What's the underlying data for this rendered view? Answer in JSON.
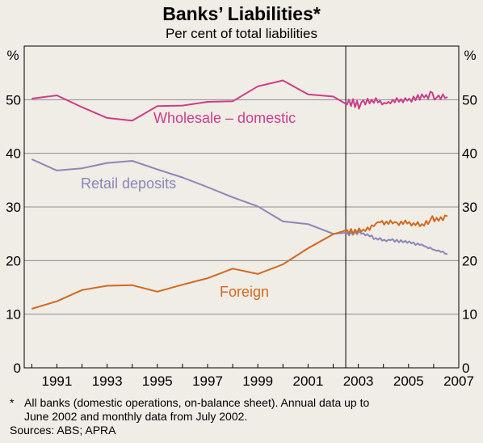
{
  "chart_data": {
    "type": "line",
    "title": "Banks’ Liabilities*",
    "subtitle": "Per cent of total liabilities",
    "ylabel_left": "%",
    "ylabel_right": "%",
    "ylim": [
      0,
      60
    ],
    "yticks": [
      0,
      10,
      20,
      30,
      40,
      50
    ],
    "xlim": [
      1989.7,
      2007.0
    ],
    "xticks": [
      1991,
      1993,
      1995,
      1997,
      1999,
      2001,
      2003,
      2005,
      2007
    ],
    "vline_x": 2002.5,
    "grid": "horizontal",
    "series": [
      {
        "name": "Wholesale – domestic",
        "color": "#cc3d8a",
        "points": [
          [
            1990,
            50.2
          ],
          [
            1991,
            50.8
          ],
          [
            1992,
            48.6
          ],
          [
            1993,
            46.6
          ],
          [
            1994,
            46.1
          ],
          [
            1995,
            48.8
          ],
          [
            1996,
            48.9
          ],
          [
            1997,
            49.6
          ],
          [
            1998,
            49.7
          ],
          [
            1999,
            52.5
          ],
          [
            2000,
            53.6
          ],
          [
            2001,
            51.0
          ],
          [
            2002,
            50.6
          ],
          [
            2002.55,
            49.1
          ],
          [
            2002.63,
            50.0
          ],
          [
            2002.71,
            48.8
          ],
          [
            2002.79,
            50.1
          ],
          [
            2002.87,
            48.6
          ],
          [
            2002.95,
            49.8
          ],
          [
            2003.03,
            48.3
          ],
          [
            2003.12,
            49.5
          ],
          [
            2003.2,
            49.9
          ],
          [
            2003.28,
            49.1
          ],
          [
            2003.37,
            50.2
          ],
          [
            2003.45,
            49.3
          ],
          [
            2003.53,
            50.0
          ],
          [
            2003.62,
            49.4
          ],
          [
            2003.7,
            50.3
          ],
          [
            2003.78,
            49.5
          ],
          [
            2003.87,
            49.8
          ],
          [
            2003.95,
            49.1
          ],
          [
            2004.03,
            49.4
          ],
          [
            2004.12,
            49.3
          ],
          [
            2004.2,
            49.6
          ],
          [
            2004.28,
            49.3
          ],
          [
            2004.37,
            50.0
          ],
          [
            2004.45,
            49.5
          ],
          [
            2004.53,
            50.3
          ],
          [
            2004.62,
            49.6
          ],
          [
            2004.7,
            50.1
          ],
          [
            2004.78,
            49.5
          ],
          [
            2004.87,
            50.3
          ],
          [
            2004.95,
            49.8
          ],
          [
            2005.03,
            50.2
          ],
          [
            2005.12,
            49.6
          ],
          [
            2005.2,
            50.6
          ],
          [
            2005.28,
            49.9
          ],
          [
            2005.37,
            50.9
          ],
          [
            2005.45,
            50.0
          ],
          [
            2005.53,
            51.0
          ],
          [
            2005.62,
            50.4
          ],
          [
            2005.7,
            50.9
          ],
          [
            2005.78,
            50.2
          ],
          [
            2005.87,
            51.5
          ],
          [
            2005.95,
            51.3
          ],
          [
            2006.03,
            50.0
          ],
          [
            2006.12,
            50.4
          ],
          [
            2006.2,
            50.8
          ],
          [
            2006.28,
            50.1
          ],
          [
            2006.37,
            51.0
          ],
          [
            2006.45,
            50.3
          ],
          [
            2006.55,
            50.5
          ]
        ]
      },
      {
        "name": "Retail deposits",
        "color": "#8b86b8",
        "points": [
          [
            1990,
            38.9
          ],
          [
            1991,
            36.8
          ],
          [
            1992,
            37.2
          ],
          [
            1993,
            38.2
          ],
          [
            1994,
            38.6
          ],
          [
            1995,
            37.0
          ],
          [
            1996,
            35.5
          ],
          [
            1997,
            33.7
          ],
          [
            1998,
            31.8
          ],
          [
            1999,
            30.1
          ],
          [
            2000,
            27.3
          ],
          [
            2001,
            26.8
          ],
          [
            2002,
            25.0
          ],
          [
            2002.55,
            25.2
          ],
          [
            2002.63,
            24.7
          ],
          [
            2002.71,
            25.3
          ],
          [
            2002.79,
            24.8
          ],
          [
            2002.87,
            25.4
          ],
          [
            2002.95,
            24.9
          ],
          [
            2003.03,
            25.5
          ],
          [
            2003.12,
            25.0
          ],
          [
            2003.2,
            25.1
          ],
          [
            2003.28,
            24.7
          ],
          [
            2003.37,
            24.9
          ],
          [
            2003.45,
            24.5
          ],
          [
            2003.53,
            24.7
          ],
          [
            2003.62,
            24.0
          ],
          [
            2003.7,
            24.2
          ],
          [
            2003.78,
            23.9
          ],
          [
            2003.87,
            24.2
          ],
          [
            2003.95,
            23.7
          ],
          [
            2004.03,
            23.9
          ],
          [
            2004.12,
            23.6
          ],
          [
            2004.2,
            23.9
          ],
          [
            2004.28,
            23.8
          ],
          [
            2004.37,
            24.0
          ],
          [
            2004.45,
            23.5
          ],
          [
            2004.53,
            23.9
          ],
          [
            2004.62,
            23.4
          ],
          [
            2004.7,
            23.8
          ],
          [
            2004.78,
            23.4
          ],
          [
            2004.87,
            23.7
          ],
          [
            2004.95,
            23.3
          ],
          [
            2005.03,
            23.6
          ],
          [
            2005.12,
            23.2
          ],
          [
            2005.2,
            23.4
          ],
          [
            2005.28,
            22.9
          ],
          [
            2005.37,
            23.2
          ],
          [
            2005.45,
            22.9
          ],
          [
            2005.53,
            23.0
          ],
          [
            2005.62,
            22.7
          ],
          [
            2005.7,
            22.6
          ],
          [
            2005.78,
            22.3
          ],
          [
            2005.87,
            22.4
          ],
          [
            2005.95,
            22.1
          ],
          [
            2006.03,
            22.0
          ],
          [
            2006.12,
            21.8
          ],
          [
            2006.2,
            21.9
          ],
          [
            2006.28,
            21.6
          ],
          [
            2006.37,
            21.7
          ],
          [
            2006.45,
            21.3
          ],
          [
            2006.55,
            21.2
          ]
        ]
      },
      {
        "name": "Foreign",
        "color": "#d2691e",
        "points": [
          [
            1990,
            11.0
          ],
          [
            1991,
            12.4
          ],
          [
            1992,
            14.5
          ],
          [
            1993,
            15.3
          ],
          [
            1994,
            15.4
          ],
          [
            1995,
            14.2
          ],
          [
            1996,
            15.5
          ],
          [
            1997,
            16.7
          ],
          [
            1998,
            18.5
          ],
          [
            1999,
            17.5
          ],
          [
            2000,
            19.3
          ],
          [
            2001,
            22.3
          ],
          [
            2002,
            24.9
          ],
          [
            2002.55,
            25.7
          ],
          [
            2002.63,
            25.1
          ],
          [
            2002.71,
            25.9
          ],
          [
            2002.79,
            25.0
          ],
          [
            2002.87,
            25.8
          ],
          [
            2002.95,
            25.2
          ],
          [
            2003.03,
            26.0
          ],
          [
            2003.12,
            25.4
          ],
          [
            2003.2,
            25.8
          ],
          [
            2003.28,
            25.5
          ],
          [
            2003.37,
            26.2
          ],
          [
            2003.45,
            25.7
          ],
          [
            2003.53,
            26.6
          ],
          [
            2003.62,
            26.4
          ],
          [
            2003.7,
            26.9
          ],
          [
            2003.78,
            27.2
          ],
          [
            2003.87,
            27.1
          ],
          [
            2003.95,
            27.4
          ],
          [
            2004.03,
            26.7
          ],
          [
            2004.12,
            27.3
          ],
          [
            2004.2,
            26.8
          ],
          [
            2004.28,
            27.5
          ],
          [
            2004.37,
            26.9
          ],
          [
            2004.45,
            27.2
          ],
          [
            2004.53,
            27.1
          ],
          [
            2004.62,
            26.6
          ],
          [
            2004.7,
            27.3
          ],
          [
            2004.78,
            26.8
          ],
          [
            2004.87,
            27.5
          ],
          [
            2004.95,
            26.9
          ],
          [
            2005.03,
            27.2
          ],
          [
            2005.12,
            26.5
          ],
          [
            2005.2,
            27.0
          ],
          [
            2005.28,
            26.6
          ],
          [
            2005.37,
            27.2
          ],
          [
            2005.45,
            26.4
          ],
          [
            2005.53,
            26.8
          ],
          [
            2005.62,
            26.5
          ],
          [
            2005.7,
            27.4
          ],
          [
            2005.78,
            26.8
          ],
          [
            2005.87,
            27.6
          ],
          [
            2005.95,
            28.3
          ],
          [
            2006.03,
            27.3
          ],
          [
            2006.12,
            28.0
          ],
          [
            2006.2,
            27.4
          ],
          [
            2006.28,
            28.1
          ],
          [
            2006.37,
            27.5
          ],
          [
            2006.45,
            28.4
          ],
          [
            2006.55,
            28.3
          ]
        ]
      }
    ]
  },
  "footnote": {
    "mark": "*",
    "text": "All banks (domestic operations, on-balance sheet). Annual data up to\nJune 2002 and monthly data from July 2002.",
    "sources": "Sources: ABS; APRA"
  }
}
